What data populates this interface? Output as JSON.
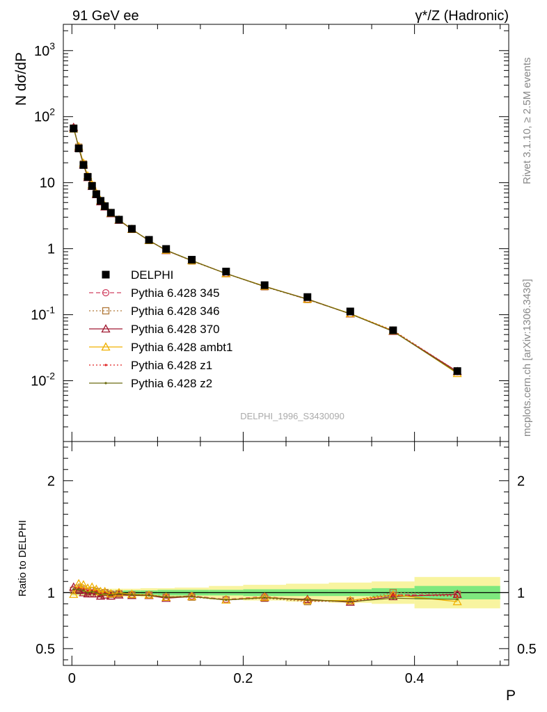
{
  "header": {
    "left": "91 GeV ee",
    "right": "γ*/Z (Hadronic)"
  },
  "side_labels": {
    "rivet": "Rivet 3.1.10, ≥ 2.5M events",
    "mcplots": "mcplots.cern.ch [arXiv:1306.3436]"
  },
  "analysis_id": "DELPHI_1996_S3430090",
  "chart_data": [
    {
      "type": "line",
      "panel": "main",
      "ylabel": "N dσ/dP",
      "yscale": "log",
      "ylim": [
        0.0012,
        2500
      ],
      "xlim": [
        -0.01,
        0.51
      ],
      "y_ticks": [
        "10^{-2}",
        "10^{-1}",
        "1",
        "10",
        "10^{2}",
        "10^{3}"
      ],
      "legend_placement": "center-left",
      "x": [
        0.002,
        0.008,
        0.0135,
        0.0185,
        0.0235,
        0.0285,
        0.0335,
        0.0385,
        0.0455,
        0.055,
        0.07,
        0.09,
        0.11,
        0.14,
        0.18,
        0.225,
        0.275,
        0.325,
        0.375,
        0.45
      ],
      "series": [
        {
          "name": "DELPHI",
          "color": "#000000",
          "marker": "filled-square",
          "line": "none",
          "values": [
            66,
            33,
            18.5,
            12.2,
            8.9,
            6.7,
            5.3,
            4.4,
            3.5,
            2.75,
            2.0,
            1.36,
            0.99,
            0.68,
            0.45,
            0.28,
            0.185,
            0.112,
            0.058,
            0.014
          ]
        },
        {
          "name": "Pythia 6.428 345",
          "color": "#d04060",
          "marker": "open-circle",
          "line": "dashed",
          "values": [
            68,
            34,
            19,
            12.3,
            9.1,
            6.9,
            5.2,
            4.4,
            3.45,
            2.72,
            1.97,
            1.33,
            0.95,
            0.66,
            0.42,
            0.27,
            0.17,
            0.103,
            0.057,
            0.0137
          ]
        },
        {
          "name": "Pythia 6.428 346",
          "color": "#b07838",
          "marker": "open-square",
          "line": "dotted",
          "values": [
            67,
            34.5,
            19.2,
            12.4,
            9.1,
            6.8,
            5.25,
            4.4,
            3.45,
            2.72,
            1.96,
            1.33,
            0.95,
            0.65,
            0.42,
            0.265,
            0.17,
            0.104,
            0.058,
            0.0138
          ]
        },
        {
          "name": "Pythia 6.428 370",
          "color": "#a01830",
          "marker": "open-triangle",
          "line": "solid",
          "values": [
            69,
            33.5,
            18.6,
            12.0,
            8.8,
            6.6,
            5.15,
            4.3,
            3.4,
            2.7,
            1.96,
            1.33,
            0.94,
            0.66,
            0.42,
            0.268,
            0.173,
            0.103,
            0.056,
            0.0138
          ]
        },
        {
          "name": "Pythia 6.428 ambt1",
          "color": "#f0b000",
          "marker": "open-triangle",
          "line": "solid",
          "values": [
            65,
            35.5,
            19.8,
            12.7,
            9.3,
            6.9,
            5.35,
            4.45,
            3.45,
            2.74,
            1.97,
            1.33,
            0.95,
            0.66,
            0.42,
            0.27,
            0.172,
            0.104,
            0.057,
            0.0129
          ]
        },
        {
          "name": "Pythia 6.428 z1",
          "color": "#e02020",
          "marker": "dot",
          "line": "dotted",
          "values": [
            68,
            34.5,
            19.2,
            12.4,
            9.0,
            6.8,
            5.25,
            4.4,
            3.45,
            2.72,
            1.96,
            1.33,
            0.95,
            0.66,
            0.42,
            0.268,
            0.172,
            0.103,
            0.057,
            0.0136
          ]
        },
        {
          "name": "Pythia 6.428 z2",
          "color": "#6b6b10",
          "marker": "dot",
          "line": "solid",
          "values": [
            68,
            34,
            19.0,
            12.3,
            9.0,
            6.8,
            5.2,
            4.35,
            3.45,
            2.72,
            1.96,
            1.33,
            0.95,
            0.66,
            0.42,
            0.268,
            0.172,
            0.103,
            0.056,
            0.0132
          ]
        }
      ]
    },
    {
      "type": "line",
      "panel": "ratio",
      "ylabel": "Ratio to DELPHI",
      "xlabel": "P",
      "ylim": [
        0.35,
        2.35
      ],
      "xlim": [
        -0.01,
        0.51
      ],
      "x_ticks": [
        "0",
        "0.2",
        "0.4"
      ],
      "y_ticks": [
        "0.5",
        "1",
        "2"
      ],
      "x": [
        0.002,
        0.008,
        0.0135,
        0.0185,
        0.0235,
        0.0285,
        0.0335,
        0.0385,
        0.0455,
        0.055,
        0.07,
        0.09,
        0.11,
        0.14,
        0.18,
        0.225,
        0.275,
        0.325,
        0.375,
        0.45
      ],
      "band_edges": [
        0,
        0.005,
        0.011,
        0.016,
        0.021,
        0.026,
        0.031,
        0.036,
        0.041,
        0.05,
        0.06,
        0.08,
        0.1,
        0.12,
        0.16,
        0.2,
        0.25,
        0.3,
        0.35,
        0.4,
        0.5
      ],
      "stat_band": [
        0.015,
        0.015,
        0.015,
        0.015,
        0.015,
        0.015,
        0.015,
        0.015,
        0.015,
        0.015,
        0.02,
        0.02,
        0.025,
        0.025,
        0.025,
        0.03,
        0.03,
        0.03,
        0.04,
        0.06
      ],
      "total_band": [
        0.03,
        0.03,
        0.03,
        0.03,
        0.03,
        0.03,
        0.03,
        0.03,
        0.035,
        0.035,
        0.035,
        0.04,
        0.04,
        0.045,
        0.06,
        0.07,
        0.08,
        0.09,
        0.1,
        0.14
      ],
      "band_colors": {
        "stat": "#7ee87e",
        "total": "#f8f4a0"
      },
      "series": [
        {
          "name": "Pythia 6.428 345",
          "color": "#d04060",
          "marker": "open-circle",
          "line": "dashed",
          "values": [
            1.03,
            1.03,
            1.02,
            1.01,
            1.02,
            1.01,
            0.99,
            1.0,
            0.99,
            0.99,
            0.985,
            0.98,
            0.96,
            0.97,
            0.94,
            0.965,
            0.93,
            0.93,
            0.98,
            0.98
          ]
        },
        {
          "name": "Pythia 6.428 346",
          "color": "#b07838",
          "marker": "open-square",
          "line": "dotted",
          "values": [
            1.02,
            1.04,
            1.03,
            1.01,
            1.02,
            1.01,
            0.99,
            1.0,
            0.985,
            0.99,
            0.98,
            0.98,
            0.96,
            0.96,
            0.935,
            0.95,
            0.92,
            0.925,
            1.0,
            0.985
          ]
        },
        {
          "name": "Pythia 6.428 370",
          "color": "#a01830",
          "marker": "open-triangle",
          "line": "solid",
          "values": [
            1.05,
            1.02,
            1.0,
            0.99,
            0.99,
            0.99,
            0.97,
            0.98,
            0.97,
            0.98,
            0.975,
            0.975,
            0.95,
            0.965,
            0.935,
            0.955,
            0.94,
            0.915,
            0.965,
            0.985
          ]
        },
        {
          "name": "Pythia 6.428 ambt1",
          "color": "#f0b000",
          "marker": "open-triangle",
          "line": "solid",
          "values": [
            0.985,
            1.08,
            1.07,
            1.04,
            1.05,
            1.03,
            1.01,
            1.01,
            0.99,
            1.0,
            0.985,
            0.98,
            0.96,
            0.965,
            0.935,
            0.96,
            0.93,
            0.93,
            0.98,
            0.92
          ]
        },
        {
          "name": "Pythia 6.428 z1",
          "color": "#e02020",
          "marker": "dot",
          "line": "dotted",
          "values": [
            1.03,
            1.04,
            1.03,
            1.02,
            1.02,
            1.01,
            0.99,
            1.0,
            0.985,
            0.99,
            0.98,
            0.98,
            0.96,
            0.97,
            0.935,
            0.955,
            0.93,
            0.92,
            0.98,
            0.97
          ]
        },
        {
          "name": "Pythia 6.428 z2",
          "color": "#6b6b10",
          "marker": "dot",
          "line": "solid",
          "values": [
            1.03,
            1.03,
            1.02,
            1.0,
            1.01,
            1.0,
            0.98,
            0.99,
            0.98,
            0.99,
            0.98,
            0.975,
            0.96,
            0.965,
            0.935,
            0.955,
            0.935,
            0.92,
            0.95,
            0.94
          ]
        }
      ]
    }
  ]
}
